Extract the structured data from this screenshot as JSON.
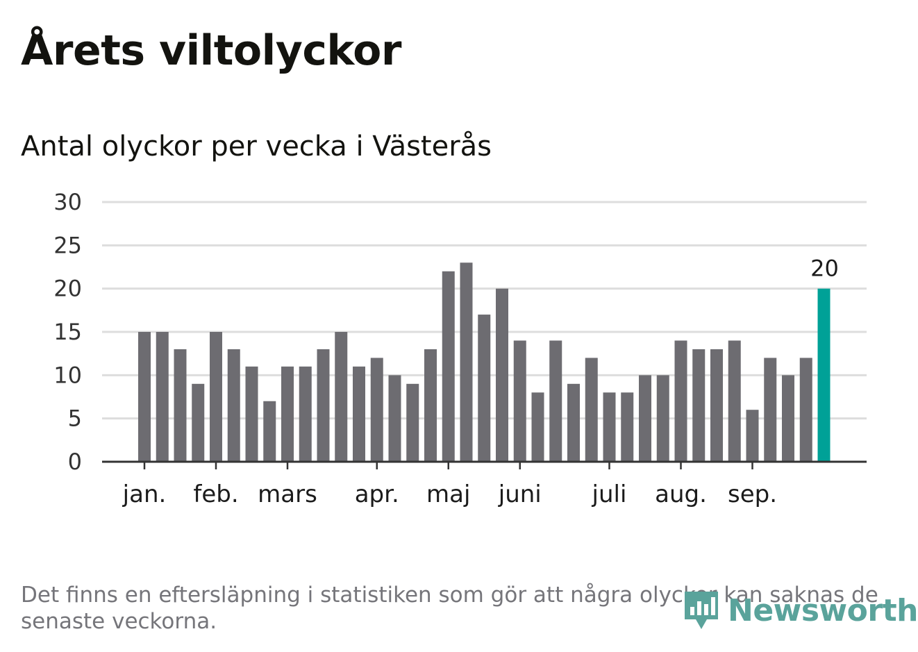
{
  "header": {
    "title": "Årets viltolyckor",
    "subtitle": "Antal olyckor per vecka i Västerås"
  },
  "chart_data": {
    "type": "bar",
    "title": "Årets viltolyckor",
    "subtitle": "Antal olyckor per vecka i Västerås",
    "xlabel": "",
    "ylabel": "",
    "ylim": [
      0,
      30
    ],
    "yticks": [
      0,
      5,
      10,
      15,
      20,
      25,
      30
    ],
    "grid": true,
    "legend": "none",
    "values": [
      15,
      15,
      13,
      9,
      15,
      13,
      11,
      7,
      11,
      11,
      13,
      15,
      11,
      12,
      10,
      9,
      13,
      22,
      23,
      17,
      20,
      14,
      8,
      14,
      9,
      12,
      8,
      8,
      10,
      10,
      14,
      13,
      13,
      14,
      6,
      12,
      10,
      12,
      20
    ],
    "month_ticks": [
      {
        "label": "jan.",
        "index": 0
      },
      {
        "label": "feb.",
        "index": 4
      },
      {
        "label": "mars",
        "index": 8
      },
      {
        "label": "apr.",
        "index": 13
      },
      {
        "label": "maj",
        "index": 17
      },
      {
        "label": "juni",
        "index": 21
      },
      {
        "label": "juli",
        "index": 26
      },
      {
        "label": "aug.",
        "index": 30
      },
      {
        "label": "sep.",
        "index": 34
      }
    ],
    "highlight": {
      "index": 38,
      "label": "20"
    },
    "colors": {
      "bar": "#6d6c71",
      "highlight": "#00a197",
      "grid": "#dddddd",
      "axis": "#333333"
    }
  },
  "footnote": "Det finns en eftersläpning i statistiken som gör att några olyckor kan saknas de senaste veckorna.",
  "logo": {
    "text": "Newsworthy",
    "icon": "newsworthy-logo-icon",
    "color": "#5aa39b"
  }
}
